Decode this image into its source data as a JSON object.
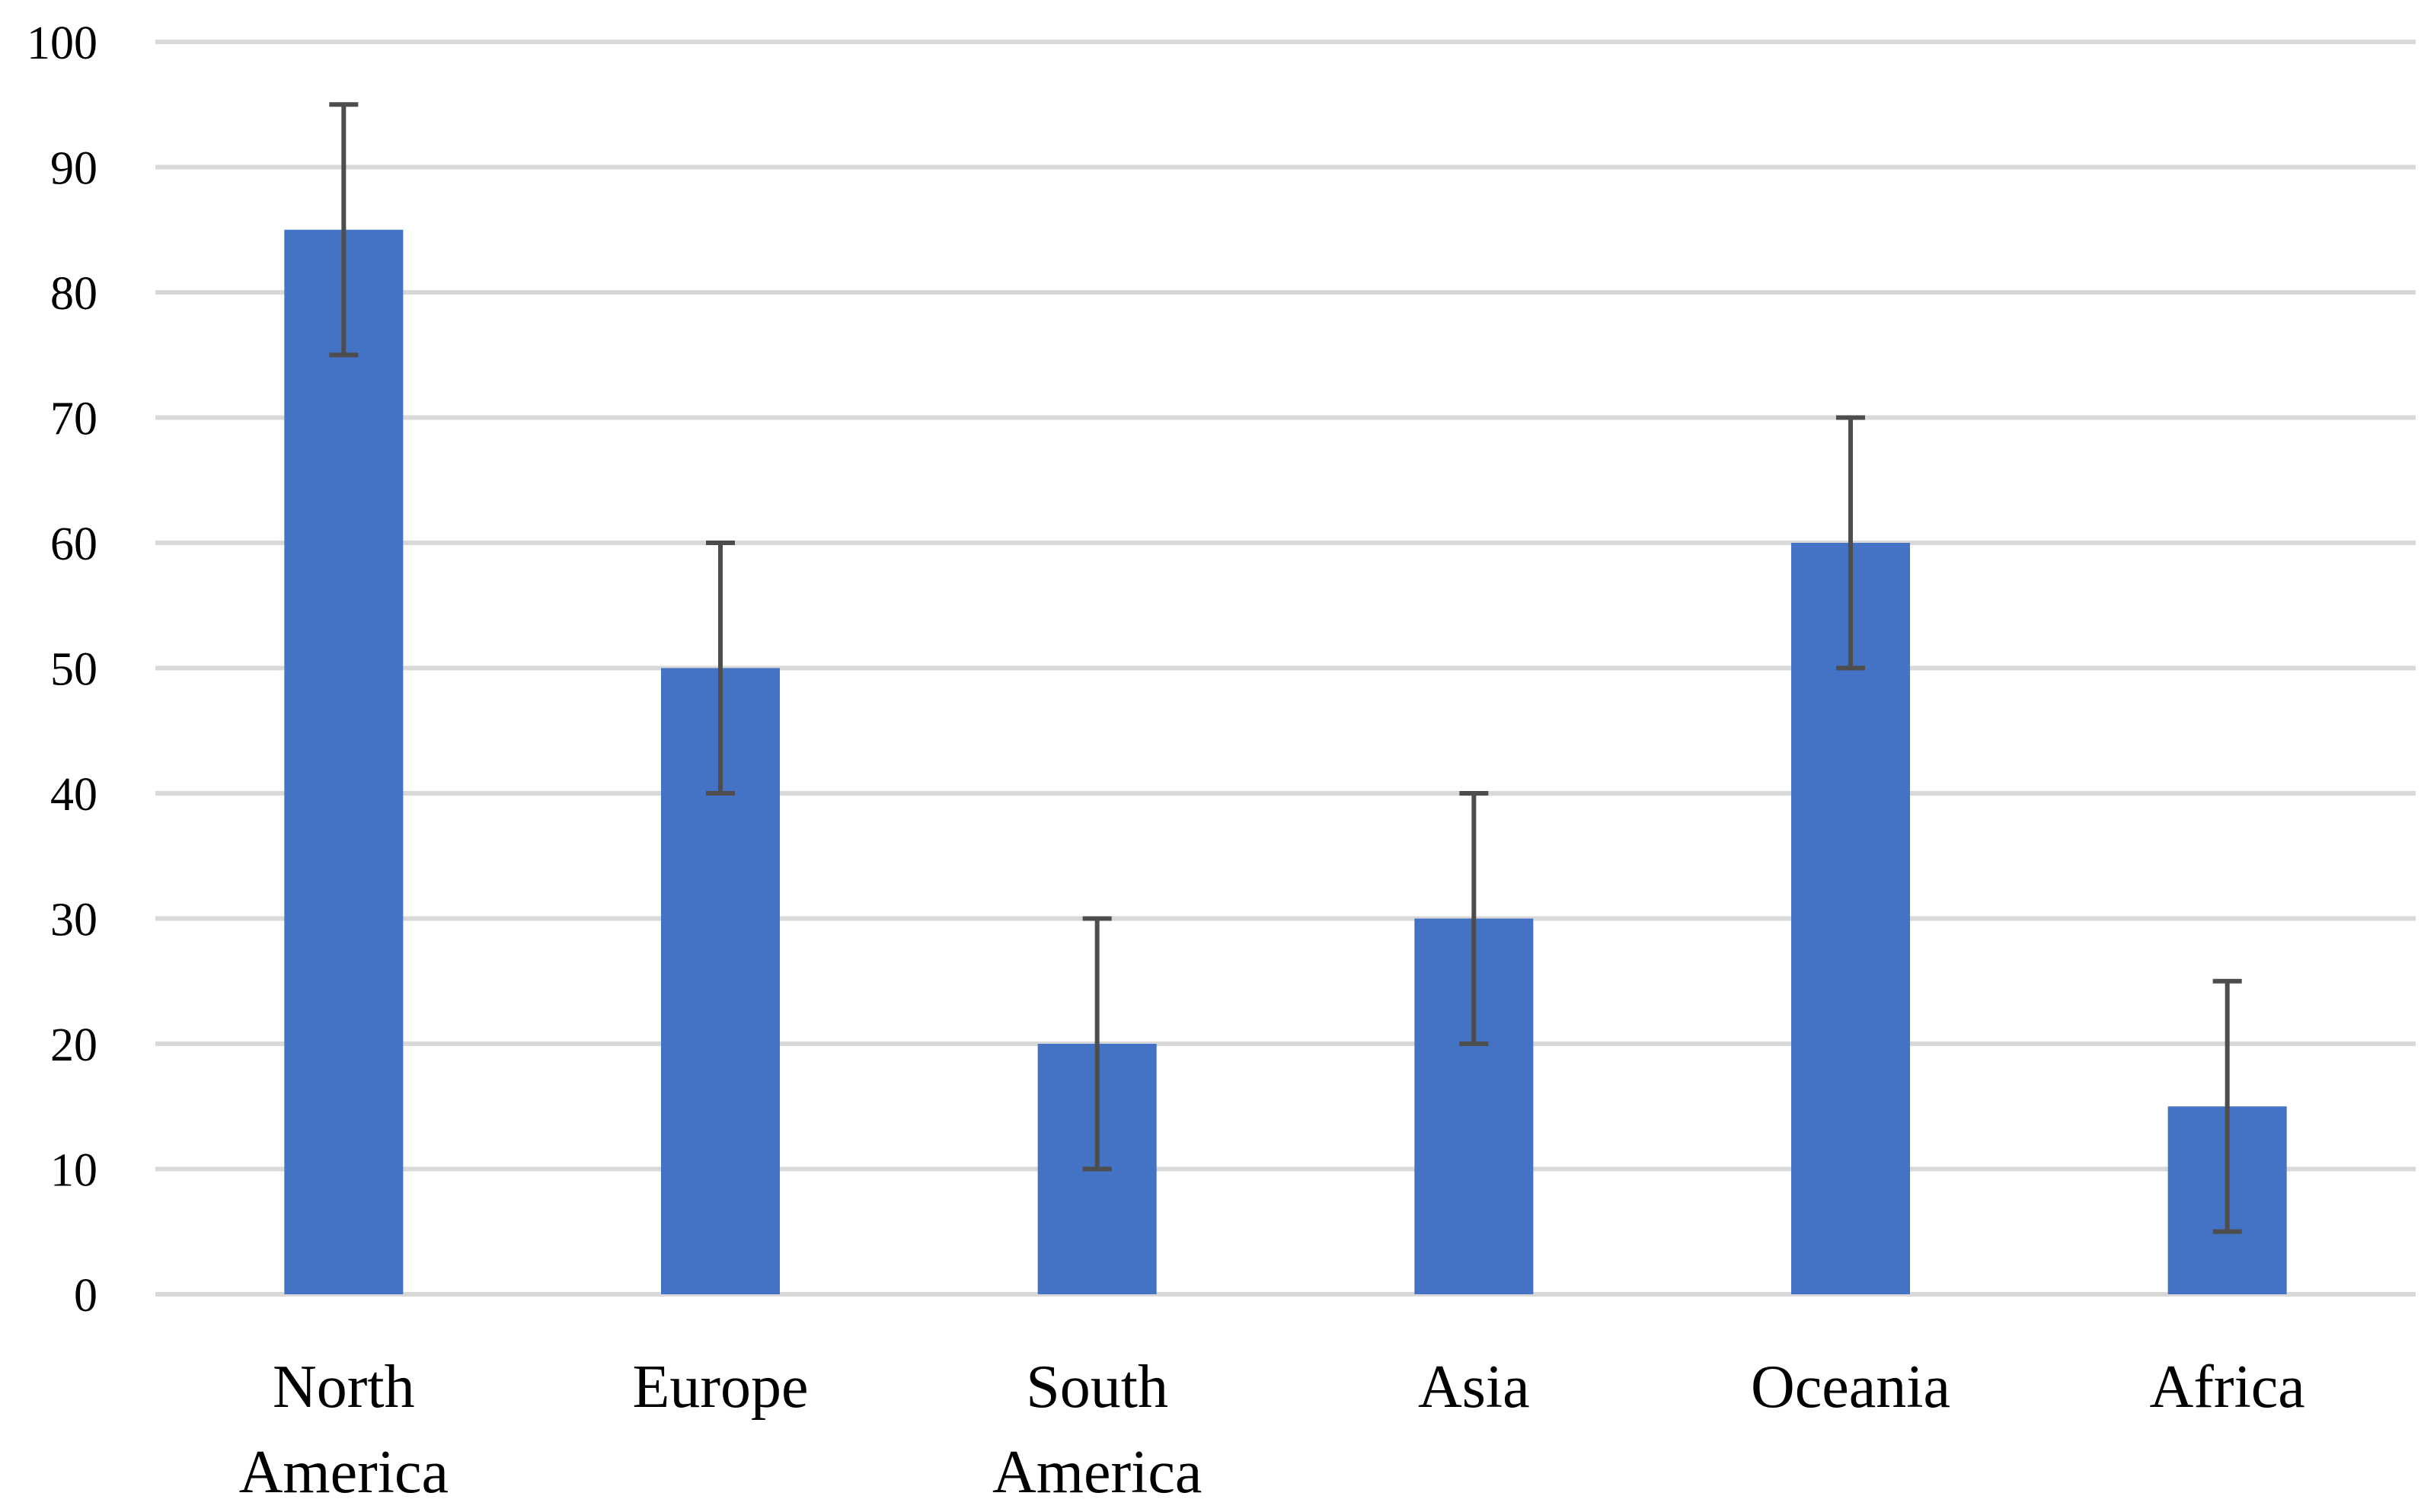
{
  "chart_data": {
    "type": "bar",
    "categories": [
      "North America",
      "Europe",
      "South America",
      "Asia",
      "Oceania",
      "Africa"
    ],
    "category_lines": [
      [
        "North",
        "America"
      ],
      [
        "Europe"
      ],
      [
        "South",
        "America"
      ],
      [
        "Asia"
      ],
      [
        "Oceania"
      ],
      [
        "Africa"
      ]
    ],
    "values": [
      85,
      50,
      20,
      30,
      60,
      15
    ],
    "error": [
      10,
      10,
      10,
      10,
      10,
      10
    ],
    "ylim": [
      0,
      100
    ],
    "yticks": [
      0,
      10,
      20,
      30,
      40,
      50,
      60,
      70,
      80,
      90,
      100
    ],
    "title": "",
    "xlabel": "",
    "ylabel": "",
    "grid": true,
    "legend": "none",
    "colors": {
      "bar": "#4472C4",
      "grid": "#D9D9D9",
      "error_bar": "#4D4D4D",
      "text": "#000000"
    }
  }
}
